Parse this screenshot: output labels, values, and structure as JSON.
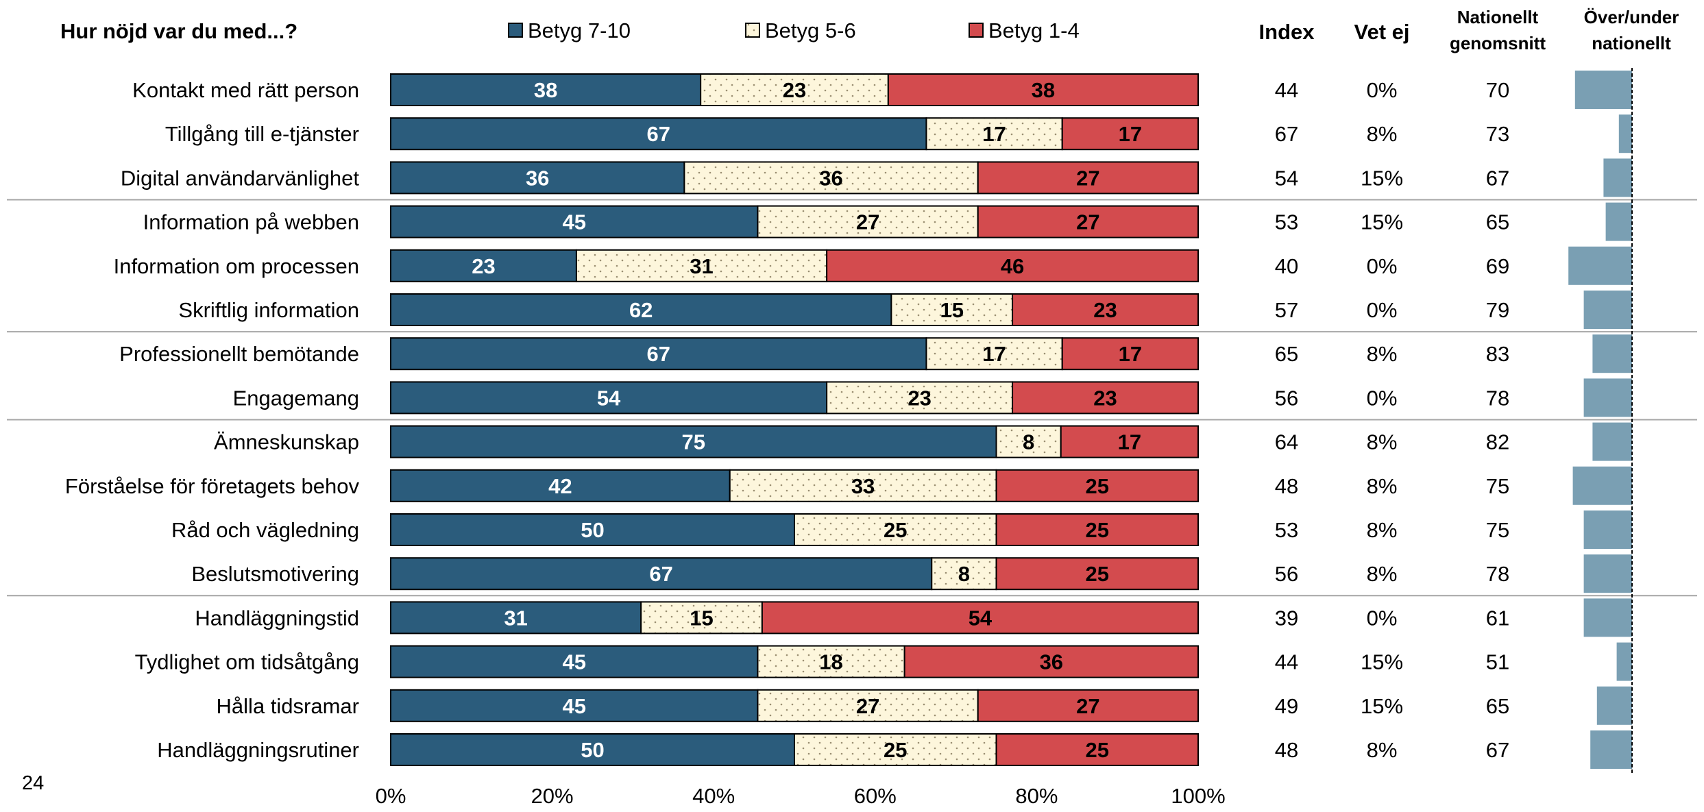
{
  "colors": {
    "good": "#2b5c7c",
    "mid": "#fdf6dc",
    "bad": "#d34b4e",
    "diff_bar": "#7a9fb3",
    "separator": "#a6a6a6",
    "mid_dots": "#9a8f72"
  },
  "page_number": "24",
  "chart_data": {
    "type": "bar",
    "orientation": "horizontal",
    "stacked": true,
    "question": "Hur nöjd var du med...?",
    "legend": [
      "Betyg 7-10",
      "Betyg 5-6",
      "Betyg 1-4"
    ],
    "legend_position": "top",
    "columns": {
      "index": "Index",
      "vet_ej": "Vet ej",
      "national_line1": "Nationellt",
      "national_line2": "genomsnitt",
      "diff_line1": "Över/under",
      "diff_line2": "nationellt"
    },
    "x_ticks": [
      "0%",
      "20%",
      "40%",
      "60%",
      "80%",
      "100%"
    ],
    "xlim": [
      0,
      100
    ],
    "group_breaks_after": [
      2,
      5,
      7,
      11
    ],
    "rows": [
      {
        "label": "Kontakt med rätt person",
        "good": 38,
        "mid": 23,
        "bad": 38,
        "index": "44",
        "vet_ej": "0%",
        "national": "70"
      },
      {
        "label": "Tillgång till e-tjänster",
        "good": 67,
        "mid": 17,
        "bad": 17,
        "index": "67",
        "vet_ej": "8%",
        "national": "73"
      },
      {
        "label": "Digital användarvänlighet",
        "good": 36,
        "mid": 36,
        "bad": 27,
        "index": "54",
        "vet_ej": "15%",
        "national": "67"
      },
      {
        "label": "Information på webben",
        "good": 45,
        "mid": 27,
        "bad": 27,
        "index": "53",
        "vet_ej": "15%",
        "national": "65"
      },
      {
        "label": "Information om processen",
        "good": 23,
        "mid": 31,
        "bad": 46,
        "index": "40",
        "vet_ej": "0%",
        "national": "69"
      },
      {
        "label": "Skriftlig information",
        "good": 62,
        "mid": 15,
        "bad": 23,
        "index": "57",
        "vet_ej": "0%",
        "national": "79"
      },
      {
        "label": "Professionellt bemötande",
        "good": 67,
        "mid": 17,
        "bad": 17,
        "index": "65",
        "vet_ej": "8%",
        "national": "83"
      },
      {
        "label": "Engagemang",
        "good": 54,
        "mid": 23,
        "bad": 23,
        "index": "56",
        "vet_ej": "0%",
        "national": "78"
      },
      {
        "label": "Ämneskunskap",
        "good": 75,
        "mid": 8,
        "bad": 17,
        "index": "64",
        "vet_ej": "8%",
        "national": "82"
      },
      {
        "label": "Förståelse för företagets behov",
        "good": 42,
        "mid": 33,
        "bad": 25,
        "index": "48",
        "vet_ej": "8%",
        "national": "75"
      },
      {
        "label": "Råd och vägledning",
        "good": 50,
        "mid": 25,
        "bad": 25,
        "index": "53",
        "vet_ej": "8%",
        "national": "75"
      },
      {
        "label": "Beslutsmotivering",
        "good": 67,
        "mid": 8,
        "bad": 25,
        "index": "56",
        "vet_ej": "8%",
        "national": "78"
      },
      {
        "label": "Handläggningstid",
        "good": 31,
        "mid": 15,
        "bad": 54,
        "index": "39",
        "vet_ej": "0%",
        "national": "61"
      },
      {
        "label": "Tydlighet om tidsåtgång",
        "good": 45,
        "mid": 18,
        "bad": 36,
        "index": "44",
        "vet_ej": "15%",
        "national": "51"
      },
      {
        "label": "Hålla tidsramar",
        "good": 45,
        "mid": 27,
        "bad": 27,
        "index": "49",
        "vet_ej": "15%",
        "national": "65"
      },
      {
        "label": "Handläggningsrutiner",
        "good": 50,
        "mid": 25,
        "bad": 25,
        "index": "48",
        "vet_ej": "8%",
        "national": "67"
      }
    ]
  }
}
